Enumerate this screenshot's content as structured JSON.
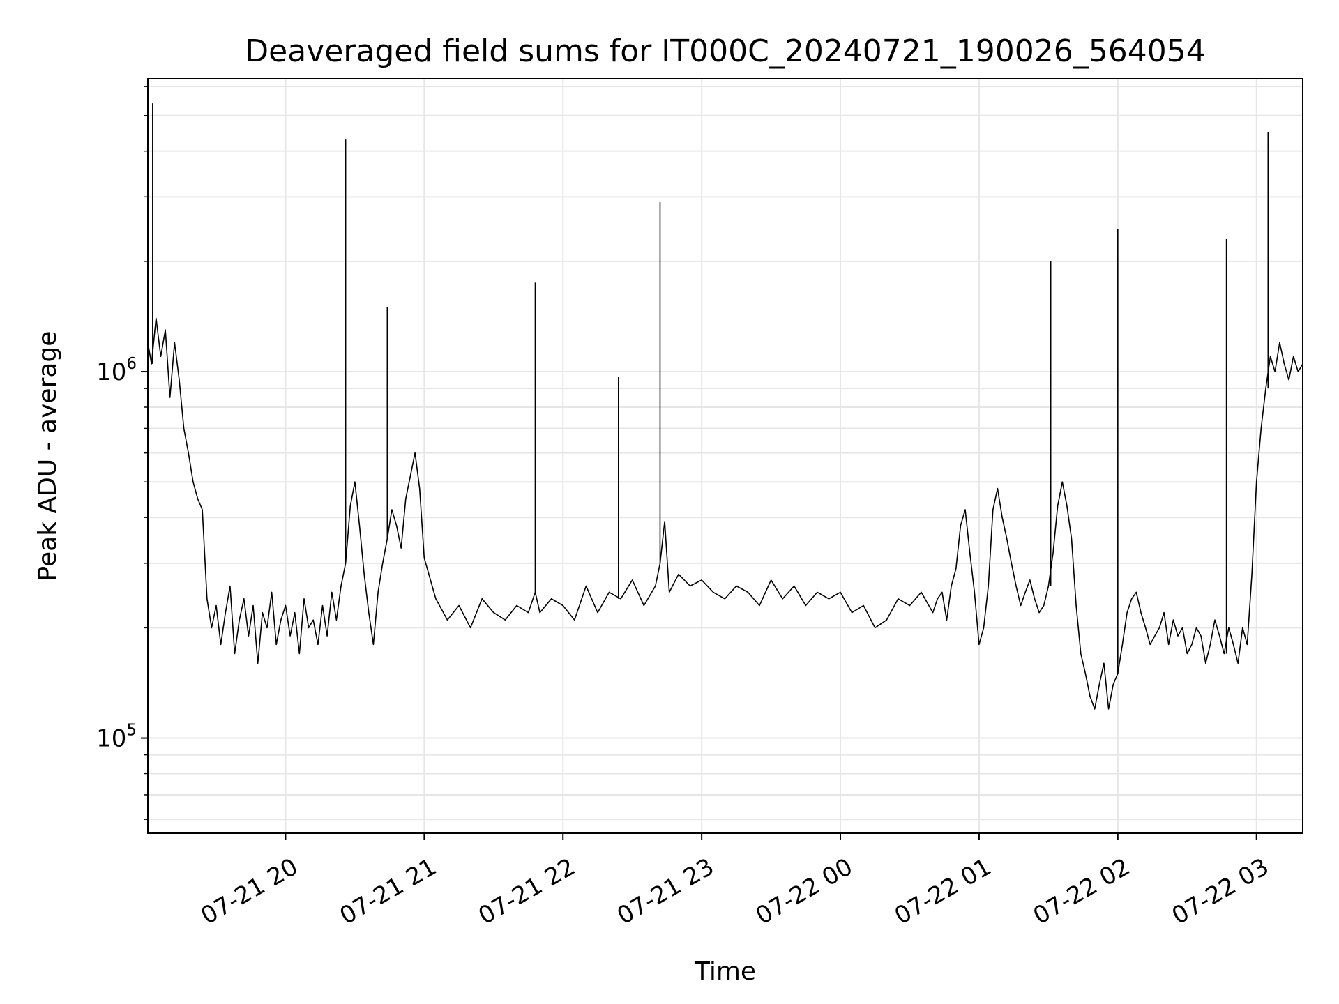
{
  "chart_data": {
    "type": "line",
    "title": "Deaveraged field sums for IT000C_20240721_190026_564054",
    "xlabel": "Time",
    "ylabel": "Peak ADU - average",
    "y_scale": "log",
    "ylim": [
      55000,
      6300000
    ],
    "y_major_ticks": [
      {
        "value": 100000,
        "base": "10",
        "exp": "5"
      },
      {
        "value": 1000000,
        "base": "10",
        "exp": "6"
      }
    ],
    "xlim": [
      "2024-07-21 19:00:26",
      "2024-07-22 03:20"
    ],
    "x_ticks": [
      {
        "t": "2024-07-21 20:00",
        "label": "07-21 20"
      },
      {
        "t": "2024-07-21 21:00",
        "label": "07-21 21"
      },
      {
        "t": "2024-07-21 22:00",
        "label": "07-21 22"
      },
      {
        "t": "2024-07-21 23:00",
        "label": "07-21 23"
      },
      {
        "t": "2024-07-22 00:00",
        "label": "07-22 00"
      },
      {
        "t": "2024-07-22 01:00",
        "label": "07-22 01"
      },
      {
        "t": "2024-07-22 02:00",
        "label": "07-22 02"
      },
      {
        "t": "2024-07-22 03:00",
        "label": "07-22 03"
      }
    ],
    "grid": true,
    "line_color": "#000000",
    "grid_color": "#e6e6e6",
    "series": [
      {
        "x": [
          "2024-07-21 19:00:26",
          "2024-07-21 19:02",
          "2024-07-21 19:04",
          "2024-07-21 19:06",
          "2024-07-21 19:08",
          "2024-07-21 19:10",
          "2024-07-21 19:12",
          "2024-07-21 19:14",
          "2024-07-21 19:16",
          "2024-07-21 19:18",
          "2024-07-21 19:20",
          "2024-07-21 19:22",
          "2024-07-21 19:24",
          "2024-07-21 19:26",
          "2024-07-21 19:28",
          "2024-07-21 19:30",
          "2024-07-21 19:32",
          "2024-07-21 19:34",
          "2024-07-21 19:36",
          "2024-07-21 19:38",
          "2024-07-21 19:40",
          "2024-07-21 19:42",
          "2024-07-21 19:44",
          "2024-07-21 19:46",
          "2024-07-21 19:48",
          "2024-07-21 19:50",
          "2024-07-21 19:52",
          "2024-07-21 19:54",
          "2024-07-21 19:56",
          "2024-07-21 19:58",
          "2024-07-21 20:00",
          "2024-07-21 20:02",
          "2024-07-21 20:04",
          "2024-07-21 20:06",
          "2024-07-21 20:08",
          "2024-07-21 20:10",
          "2024-07-21 20:12",
          "2024-07-21 20:14",
          "2024-07-21 20:16",
          "2024-07-21 20:18",
          "2024-07-21 20:20",
          "2024-07-21 20:22",
          "2024-07-21 20:24",
          "2024-07-21 20:26",
          "2024-07-21 20:28",
          "2024-07-21 20:30",
          "2024-07-21 20:32",
          "2024-07-21 20:34",
          "2024-07-21 20:36",
          "2024-07-21 20:38",
          "2024-07-21 20:40",
          "2024-07-21 20:42",
          "2024-07-21 20:44",
          "2024-07-21 20:46",
          "2024-07-21 20:48",
          "2024-07-21 20:50",
          "2024-07-21 20:52",
          "2024-07-21 20:54",
          "2024-07-21 20:56",
          "2024-07-21 20:58",
          "2024-07-21 21:00",
          "2024-07-21 21:05",
          "2024-07-21 21:10",
          "2024-07-21 21:15",
          "2024-07-21 21:20",
          "2024-07-21 21:25",
          "2024-07-21 21:30",
          "2024-07-21 21:35",
          "2024-07-21 21:40",
          "2024-07-21 21:45",
          "2024-07-21 21:48",
          "2024-07-21 21:50",
          "2024-07-21 21:55",
          "2024-07-21 22:00",
          "2024-07-21 22:05",
          "2024-07-21 22:10",
          "2024-07-21 22:15",
          "2024-07-21 22:20",
          "2024-07-21 22:25",
          "2024-07-21 22:30",
          "2024-07-21 22:35",
          "2024-07-21 22:40",
          "2024-07-21 22:42",
          "2024-07-21 22:44",
          "2024-07-21 22:46",
          "2024-07-21 22:50",
          "2024-07-21 22:55",
          "2024-07-21 23:00",
          "2024-07-21 23:05",
          "2024-07-21 23:10",
          "2024-07-21 23:15",
          "2024-07-21 23:20",
          "2024-07-21 23:25",
          "2024-07-21 23:30",
          "2024-07-21 23:35",
          "2024-07-21 23:40",
          "2024-07-21 23:45",
          "2024-07-21 23:50",
          "2024-07-21 23:55",
          "2024-07-22 00:00",
          "2024-07-22 00:05",
          "2024-07-22 00:10",
          "2024-07-22 00:15",
          "2024-07-22 00:20",
          "2024-07-22 00:25",
          "2024-07-22 00:30",
          "2024-07-22 00:35",
          "2024-07-22 00:40",
          "2024-07-22 00:42",
          "2024-07-22 00:44",
          "2024-07-22 00:46",
          "2024-07-22 00:48",
          "2024-07-22 00:50",
          "2024-07-22 00:52",
          "2024-07-22 00:54",
          "2024-07-22 00:56",
          "2024-07-22 00:58",
          "2024-07-22 01:00",
          "2024-07-22 01:02",
          "2024-07-22 01:04",
          "2024-07-22 01:06",
          "2024-07-22 01:08",
          "2024-07-22 01:10",
          "2024-07-22 01:12",
          "2024-07-22 01:14",
          "2024-07-22 01:16",
          "2024-07-22 01:18",
          "2024-07-22 01:20",
          "2024-07-22 01:22",
          "2024-07-22 01:24",
          "2024-07-22 01:26",
          "2024-07-22 01:28",
          "2024-07-22 01:30",
          "2024-07-22 01:32",
          "2024-07-22 01:34",
          "2024-07-22 01:36",
          "2024-07-22 01:38",
          "2024-07-22 01:40",
          "2024-07-22 01:42",
          "2024-07-22 01:44",
          "2024-07-22 01:46",
          "2024-07-22 01:48",
          "2024-07-22 01:50",
          "2024-07-22 01:52",
          "2024-07-22 01:54",
          "2024-07-22 01:56",
          "2024-07-22 01:58",
          "2024-07-22 02:00",
          "2024-07-22 02:02",
          "2024-07-22 02:04",
          "2024-07-22 02:06",
          "2024-07-22 02:08",
          "2024-07-22 02:10",
          "2024-07-22 02:12",
          "2024-07-22 02:14",
          "2024-07-22 02:16",
          "2024-07-22 02:18",
          "2024-07-22 02:20",
          "2024-07-22 02:22",
          "2024-07-22 02:24",
          "2024-07-22 02:26",
          "2024-07-22 02:28",
          "2024-07-22 02:30",
          "2024-07-22 02:32",
          "2024-07-22 02:34",
          "2024-07-22 02:36",
          "2024-07-22 02:38",
          "2024-07-22 02:40",
          "2024-07-22 02:42",
          "2024-07-22 02:44",
          "2024-07-22 02:46",
          "2024-07-22 02:48",
          "2024-07-22 02:50",
          "2024-07-22 02:52",
          "2024-07-22 02:54",
          "2024-07-22 02:56",
          "2024-07-22 02:58",
          "2024-07-22 03:00",
          "2024-07-22 03:02",
          "2024-07-22 03:04",
          "2024-07-22 03:06",
          "2024-07-22 03:08",
          "2024-07-22 03:10",
          "2024-07-22 03:12",
          "2024-07-22 03:14",
          "2024-07-22 03:16",
          "2024-07-22 03:18",
          "2024-07-22 03:20"
        ],
        "y": [
          1200000,
          1050000,
          1400000,
          1100000,
          1300000,
          850000,
          1200000,
          950000,
          700000,
          600000,
          500000,
          450000,
          420000,
          240000,
          200000,
          230000,
          180000,
          220000,
          260000,
          170000,
          210000,
          240000,
          190000,
          230000,
          160000,
          220000,
          200000,
          250000,
          180000,
          210000,
          230000,
          190000,
          220000,
          170000,
          240000,
          200000,
          210000,
          180000,
          230000,
          190000,
          250000,
          210000,
          260000,
          300000,
          430000,
          500000,
          380000,
          280000,
          220000,
          180000,
          250000,
          300000,
          350000,
          420000,
          380000,
          330000,
          450000,
          520000,
          600000,
          480000,
          310000,
          240000,
          210000,
          230000,
          200000,
          240000,
          220000,
          210000,
          230000,
          220000,
          250000,
          220000,
          240000,
          230000,
          210000,
          260000,
          220000,
          250000,
          240000,
          270000,
          230000,
          260000,
          300000,
          390000,
          250000,
          280000,
          260000,
          270000,
          250000,
          240000,
          260000,
          250000,
          230000,
          270000,
          240000,
          260000,
          230000,
          250000,
          240000,
          250000,
          220000,
          230000,
          200000,
          210000,
          240000,
          230000,
          250000,
          220000,
          240000,
          250000,
          210000,
          260000,
          290000,
          380000,
          420000,
          320000,
          250000,
          180000,
          200000,
          260000,
          420000,
          480000,
          400000,
          350000,
          300000,
          260000,
          230000,
          250000,
          270000,
          240000,
          220000,
          230000,
          260000,
          320000,
          430000,
          500000,
          430000,
          350000,
          230000,
          170000,
          150000,
          130000,
          120000,
          140000,
          160000,
          120000,
          140000,
          150000,
          180000,
          220000,
          240000,
          250000,
          220000,
          200000,
          180000,
          190000,
          200000,
          220000,
          180000,
          210000,
          190000,
          200000,
          170000,
          180000,
          200000,
          190000,
          160000,
          180000,
          210000,
          190000,
          170000,
          200000,
          180000,
          160000,
          200000,
          180000,
          280000,
          500000,
          700000,
          900000,
          1100000,
          1000000,
          1200000,
          1050000,
          950000,
          1100000,
          1000000,
          1050000
        ]
      }
    ],
    "spikes": [
      {
        "x": "2024-07-21 19:02:30",
        "y": 5400000
      },
      {
        "x": "2024-07-21 20:26",
        "y": 4300000
      },
      {
        "x": "2024-07-21 20:44",
        "y": 1500000
      },
      {
        "x": "2024-07-21 21:48",
        "y": 1750000
      },
      {
        "x": "2024-07-21 22:24",
        "y": 970000
      },
      {
        "x": "2024-07-21 22:42",
        "y": 2900000
      },
      {
        "x": "2024-07-22 01:31",
        "y": 2000000
      },
      {
        "x": "2024-07-22 02:00",
        "y": 2450000
      },
      {
        "x": "2024-07-22 02:47",
        "y": 2300000
      },
      {
        "x": "2024-07-22 03:05",
        "y": 4500000
      }
    ]
  }
}
